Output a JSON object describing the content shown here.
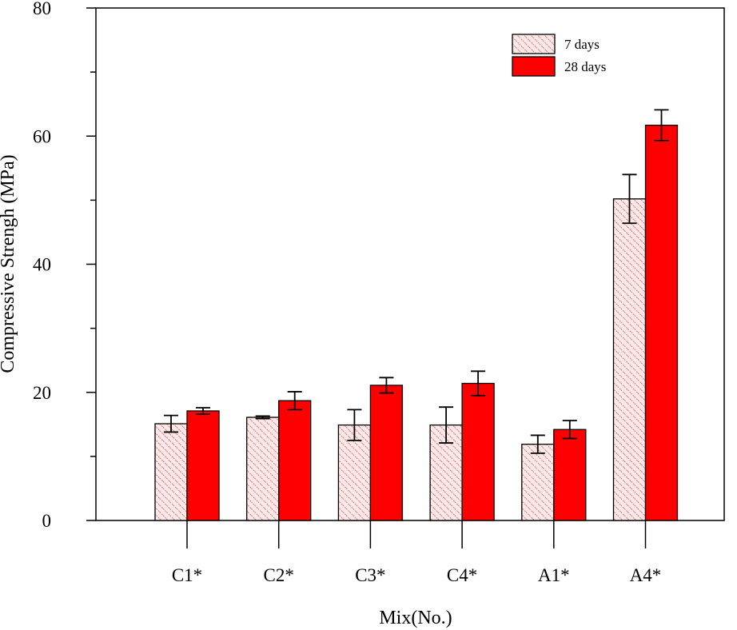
{
  "chart_data": {
    "type": "bar",
    "title": "",
    "xlabel": "Mix(No.)",
    "ylabel": "Compressive Strengh (MPa)",
    "ylim": [
      0,
      80
    ],
    "yticks": [
      0,
      20,
      40,
      60,
      80
    ],
    "y_minor_ticks": [
      10,
      30,
      50,
      70
    ],
    "grid": false,
    "legend_position": "top-right",
    "categories": [
      "C1*",
      "C2*",
      "C3*",
      "C4*",
      "A1*",
      "A4*"
    ],
    "series": [
      {
        "name": "7 days",
        "values": [
          15.1,
          16.1,
          14.9,
          14.9,
          11.9,
          50.2
        ],
        "errors": [
          1.3,
          0.2,
          2.4,
          2.8,
          1.4,
          3.8
        ],
        "color": "#ff0000",
        "fill": "hatched"
      },
      {
        "name": "28 days",
        "values": [
          17.1,
          18.7,
          21.1,
          21.4,
          14.2,
          61.7
        ],
        "errors": [
          0.5,
          1.4,
          1.2,
          1.9,
          1.4,
          2.4
        ],
        "color": "#ff0000",
        "fill": "solid"
      }
    ]
  }
}
